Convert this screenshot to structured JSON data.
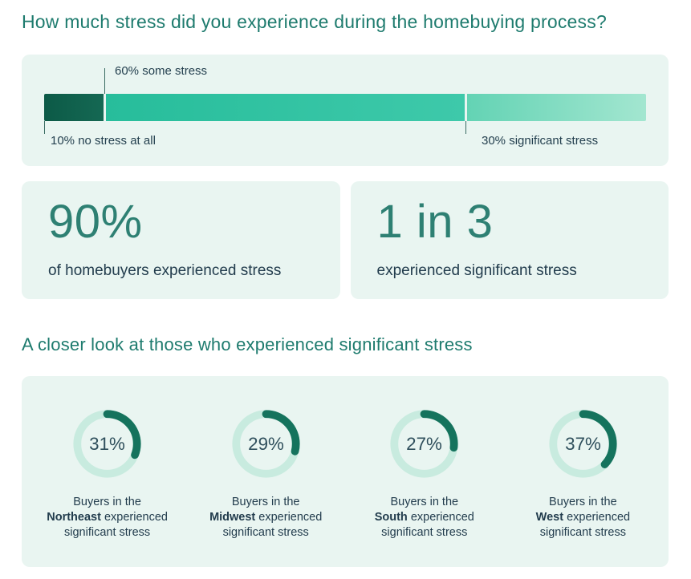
{
  "page": {
    "title": "How much stress did you experience during the homebuying process?",
    "section2_title": "A closer look at those who experienced significant stress"
  },
  "colors": {
    "heading_teal": "#1E7B6E",
    "panel_bg": "#E9F5F1",
    "dark_text": "#223C4D",
    "bar_no_stress_dark": "#0C5A47",
    "bar_some_stress": "#2FC3A2",
    "bar_significant_light": "#8FE0C6",
    "donut_track": "#C8EBDF",
    "donut_arc": "#15735D"
  },
  "bar": {
    "above_label": "60% some stress",
    "below_left_label": "10% no stress at all",
    "below_right_label": "30% significant stress",
    "segments": [
      {
        "name": "no stress at all",
        "percent": 10
      },
      {
        "name": "some stress",
        "percent": 60
      },
      {
        "name": "significant stress",
        "percent": 30
      }
    ]
  },
  "stats": [
    {
      "value": "90%",
      "caption": "of homebuyers experienced stress"
    },
    {
      "value": "1 in 3",
      "caption": "experienced significant stress"
    }
  ],
  "donuts": [
    {
      "percent": 31,
      "percent_label": "31%",
      "caption_line1": "Buyers in the",
      "region": "Northeast",
      "caption_mid": "experienced",
      "caption_line3": "significant stress"
    },
    {
      "percent": 29,
      "percent_label": "29%",
      "caption_line1": "Buyers in the",
      "region": "Midwest",
      "caption_mid": "experienced",
      "caption_line3": "significant stress"
    },
    {
      "percent": 27,
      "percent_label": "27%",
      "caption_line1": "Buyers in the",
      "region": "South",
      "caption_mid": "experienced",
      "caption_line3": "significant stress"
    },
    {
      "percent": 37,
      "percent_label": "37%",
      "caption_line1": "Buyers in the",
      "region": "West",
      "caption_mid": "experienced",
      "caption_line3": "significant stress"
    }
  ],
  "chart_data": [
    {
      "type": "bar",
      "subtype": "horizontal_stacked",
      "title": "How much stress did you experience during the homebuying process?",
      "categories": [
        "no stress at all",
        "some stress",
        "significant stress"
      ],
      "values": [
        10,
        60,
        30
      ],
      "unit": "%",
      "xlim": [
        0,
        100
      ],
      "annotations": [
        "10% no stress at all",
        "60% some stress",
        "30% significant stress"
      ],
      "legend": false,
      "grid": false
    },
    {
      "type": "pie",
      "subtype": "donut_small_multiples",
      "title": "A closer look at those who experienced significant stress",
      "categories": [
        "Northeast",
        "Midwest",
        "South",
        "West"
      ],
      "values": [
        31,
        29,
        27,
        37
      ],
      "unit": "% of buyers who experienced significant stress",
      "legend": false
    },
    {
      "type": "table",
      "title": "Key stats",
      "categories": [
        "of homebuyers experienced stress",
        "experienced significant stress"
      ],
      "values": [
        "90%",
        "1 in 3"
      ]
    }
  ]
}
